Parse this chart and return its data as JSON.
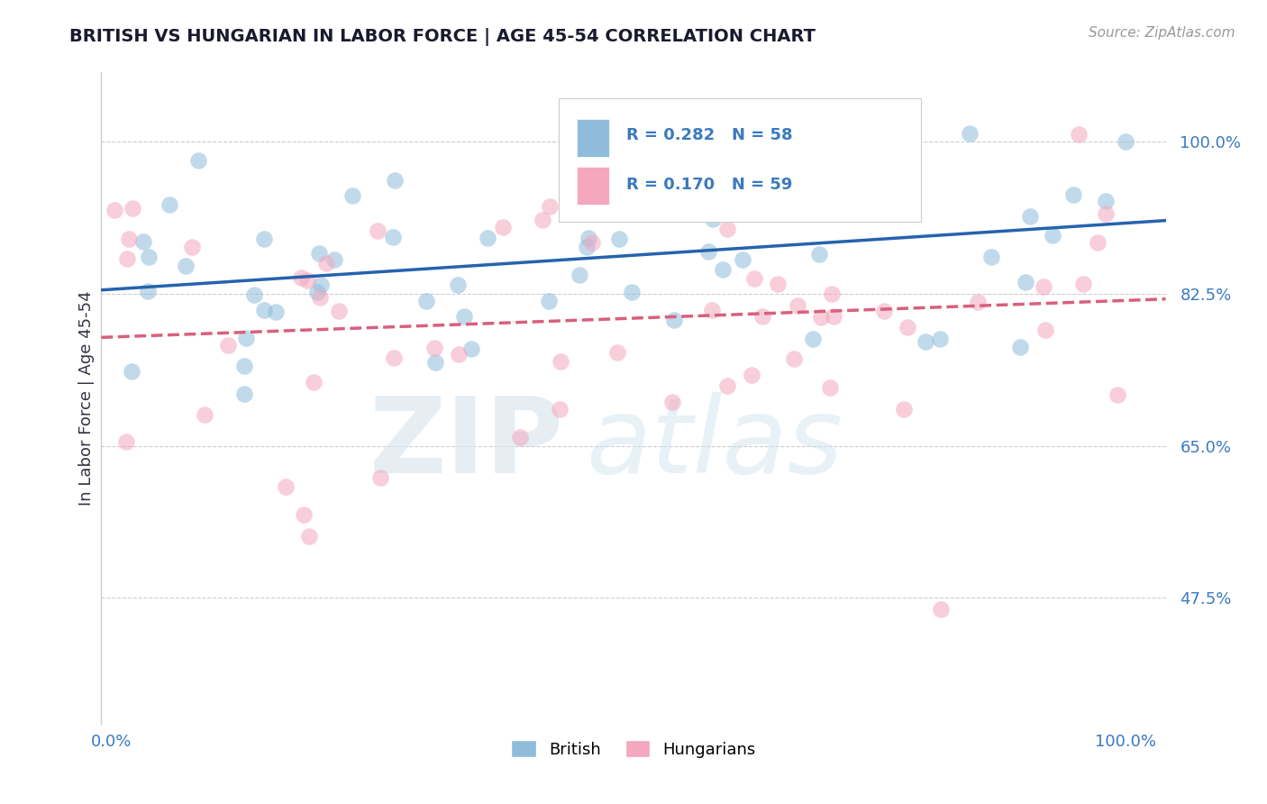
{
  "title": "BRITISH VS HUNGARIAN IN LABOR FORCE | AGE 45-54 CORRELATION CHART",
  "source": "Source: ZipAtlas.com",
  "ylabel": "In Labor Force | Age 45-54",
  "watermark_1": "ZIP",
  "watermark_2": "atlas",
  "legend_british_R": "R = 0.282",
  "legend_british_N": "N = 58",
  "legend_hungarian_R": "R = 0.170",
  "legend_hungarian_N": "N = 59",
  "british_color": "#8fbcdb",
  "hungarian_color": "#f4a7be",
  "trend_british_color": "#2563ae",
  "trend_hungarian_color": "#d95f7f",
  "grid_color": "#cccccc",
  "axis_label_color": "#3a7abf",
  "title_color": "#1a1a2e",
  "bg_color": "#ffffff",
  "R_british": 0.282,
  "R_hungarian": 0.17,
  "N_british": 58,
  "N_hungarian": 59,
  "marker_size": 180,
  "marker_alpha": 0.55,
  "ytick_vals": [
    0.475,
    0.65,
    0.825,
    1.0
  ],
  "ytick_labels": [
    "47.5%",
    "65.0%",
    "82.5%",
    "100.0%"
  ],
  "xtick_labels_left": "0.0%",
  "xtick_labels_right": "100.0%",
  "ymin": 0.33,
  "ymax": 1.08,
  "xmin": -0.01,
  "xmax": 1.04
}
